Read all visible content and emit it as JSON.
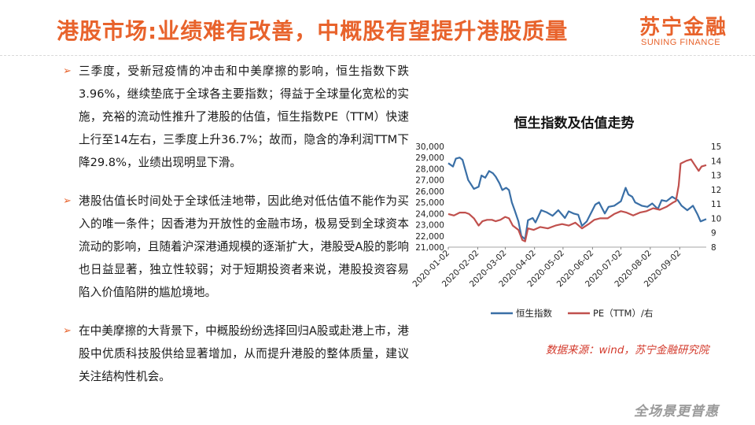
{
  "header": {
    "title": "港股市场:业绩难有改善，中概股有望提升港股质量",
    "logo_cn": "苏宁金融",
    "logo_en": "SUNING FINANCE"
  },
  "bullets": [
    "三季度，受新冠疫情的冲击和中美摩擦的影响，恒生指数下跌3.96%，继续垫底于全球各主要指数；得益于全球量化宽松的实施，充裕的流动性推升了港股的估值，恒生指数PE（TTM）快速上行至14左右，三季度上升36.7%；故而，隐含的净利润TTM下降29.8%，业绩出现明显下滑。",
    "港股估值长时间处于全球低洼地带，因此绝对低估值不能作为买入的唯一条件；因香港为开放性的金融市场，极易受到全球资本流动的影响，且随着沪深港通规模的逐渐扩大，港股受A股的影响也日益显著，独立性较弱；对于短期投资者来说，港股投资容易陷入价值陷阱的尴尬境地。",
    "在中美摩擦的大背景下，中概股纷纷选择回归A股或赴港上市，港股中优质科技股供给显著增加，从而提升港股的整体质量，建议关注结构性机会。"
  ],
  "source": "数据来源：wind，苏宁金融研究院",
  "footer_logo": "全场景更普惠",
  "colors": {
    "accent": "#e8632c",
    "hsi": "#3a6fa6",
    "pe": "#c0504d",
    "source": "#d33a2c"
  },
  "chart_data": {
    "type": "line",
    "title": "恒生指数及估值走势",
    "x_ticks": [
      "2020-01-02",
      "2020-02-02",
      "2020-03-02",
      "2020-04-02",
      "2020-05-02",
      "2020-06-02",
      "2020-07-02",
      "2020-08-02",
      "2020-09-02"
    ],
    "x_range": [
      "2020-01-02",
      "2020-09-30"
    ],
    "left_axis": {
      "min": 21000,
      "max": 30000,
      "ticks": [
        "21,000",
        "22,000",
        "23,000",
        "24,000",
        "25,000",
        "26,000",
        "27,000",
        "28,000",
        "29,000",
        "30,000"
      ]
    },
    "right_axis": {
      "min": 8,
      "max": 15,
      "ticks": [
        "8",
        "9",
        "10",
        "11",
        "12",
        "13",
        "14",
        "15"
      ]
    },
    "legend_position": "bottom",
    "series": [
      {
        "name": "恒生指数",
        "axis": "left",
        "points": [
          [
            "2020-01-02",
            28500
          ],
          [
            "2020-01-07",
            28200
          ],
          [
            "2020-01-10",
            28900
          ],
          [
            "2020-01-14",
            29000
          ],
          [
            "2020-01-17",
            28800
          ],
          [
            "2020-01-20",
            27900
          ],
          [
            "2020-01-23",
            27000
          ],
          [
            "2020-01-29",
            26200
          ],
          [
            "2020-02-03",
            26400
          ],
          [
            "2020-02-06",
            27400
          ],
          [
            "2020-02-10",
            27200
          ],
          [
            "2020-02-14",
            27800
          ],
          [
            "2020-02-18",
            27600
          ],
          [
            "2020-02-21",
            27300
          ],
          [
            "2020-02-25",
            26700
          ],
          [
            "2020-02-28",
            26100
          ],
          [
            "2020-03-03",
            26300
          ],
          [
            "2020-03-06",
            26100
          ],
          [
            "2020-03-09",
            25000
          ],
          [
            "2020-03-12",
            24300
          ],
          [
            "2020-03-16",
            23300
          ],
          [
            "2020-03-19",
            22000
          ],
          [
            "2020-03-23",
            21700
          ],
          [
            "2020-03-26",
            23400
          ],
          [
            "2020-03-31",
            23600
          ],
          [
            "2020-04-03",
            23200
          ],
          [
            "2020-04-09",
            24300
          ],
          [
            "2020-04-15",
            24100
          ],
          [
            "2020-04-21",
            23800
          ],
          [
            "2020-04-27",
            24300
          ],
          [
            "2020-05-04",
            23600
          ],
          [
            "2020-05-08",
            24200
          ],
          [
            "2020-05-13",
            24000
          ],
          [
            "2020-05-18",
            23900
          ],
          [
            "2020-05-22",
            22900
          ],
          [
            "2020-05-27",
            23300
          ],
          [
            "2020-06-02",
            24300
          ],
          [
            "2020-06-05",
            24800
          ],
          [
            "2020-06-09",
            25000
          ],
          [
            "2020-06-15",
            24000
          ],
          [
            "2020-06-19",
            24600
          ],
          [
            "2020-06-25",
            24700
          ],
          [
            "2020-07-02",
            25100
          ],
          [
            "2020-07-07",
            26300
          ],
          [
            "2020-07-10",
            25700
          ],
          [
            "2020-07-14",
            25500
          ],
          [
            "2020-07-17",
            25000
          ],
          [
            "2020-07-24",
            24700
          ],
          [
            "2020-07-30",
            24600
          ],
          [
            "2020-08-04",
            24900
          ],
          [
            "2020-08-10",
            24400
          ],
          [
            "2020-08-14",
            25200
          ],
          [
            "2020-08-19",
            25100
          ],
          [
            "2020-08-25",
            25500
          ],
          [
            "2020-08-31",
            25200
          ],
          [
            "2020-09-04",
            24700
          ],
          [
            "2020-09-10",
            24300
          ],
          [
            "2020-09-16",
            24700
          ],
          [
            "2020-09-21",
            23900
          ],
          [
            "2020-09-24",
            23300
          ],
          [
            "2020-09-30",
            23500
          ]
        ]
      },
      {
        "name": "PE（TTM）/右",
        "axis": "right",
        "points": [
          [
            "2020-01-02",
            10.3
          ],
          [
            "2020-01-08",
            10.2
          ],
          [
            "2020-01-14",
            10.4
          ],
          [
            "2020-01-20",
            10.4
          ],
          [
            "2020-01-24",
            10.3
          ],
          [
            "2020-01-29",
            10.0
          ],
          [
            "2020-02-03",
            9.5
          ],
          [
            "2020-02-07",
            9.8
          ],
          [
            "2020-02-12",
            9.9
          ],
          [
            "2020-02-17",
            9.9
          ],
          [
            "2020-02-21",
            9.8
          ],
          [
            "2020-02-26",
            9.9
          ],
          [
            "2020-03-02",
            10.1
          ],
          [
            "2020-03-06",
            10.0
          ],
          [
            "2020-03-10",
            9.5
          ],
          [
            "2020-03-16",
            9.2
          ],
          [
            "2020-03-20",
            8.5
          ],
          [
            "2020-03-23",
            8.4
          ],
          [
            "2020-03-26",
            9.3
          ],
          [
            "2020-04-01",
            9.2
          ],
          [
            "2020-04-08",
            9.4
          ],
          [
            "2020-04-16",
            9.3
          ],
          [
            "2020-04-24",
            9.5
          ],
          [
            "2020-05-01",
            9.6
          ],
          [
            "2020-05-08",
            9.5
          ],
          [
            "2020-05-15",
            9.7
          ],
          [
            "2020-05-22",
            9.3
          ],
          [
            "2020-05-29",
            9.6
          ],
          [
            "2020-06-04",
            9.9
          ],
          [
            "2020-06-10",
            10.0
          ],
          [
            "2020-06-18",
            10.0
          ],
          [
            "2020-06-25",
            10.3
          ],
          [
            "2020-07-02",
            10.5
          ],
          [
            "2020-07-08",
            10.4
          ],
          [
            "2020-07-15",
            10.2
          ],
          [
            "2020-07-22",
            10.4
          ],
          [
            "2020-07-29",
            10.5
          ],
          [
            "2020-08-05",
            10.7
          ],
          [
            "2020-08-12",
            10.6
          ],
          [
            "2020-08-19",
            10.8
          ],
          [
            "2020-08-26",
            11.1
          ],
          [
            "2020-08-29",
            11.2
          ],
          [
            "2020-09-01",
            12.3
          ],
          [
            "2020-09-03",
            13.8
          ],
          [
            "2020-09-09",
            14.0
          ],
          [
            "2020-09-14",
            14.1
          ],
          [
            "2020-09-18",
            13.7
          ],
          [
            "2020-09-22",
            13.3
          ],
          [
            "2020-09-25",
            13.6
          ],
          [
            "2020-09-30",
            13.7
          ]
        ]
      }
    ]
  }
}
